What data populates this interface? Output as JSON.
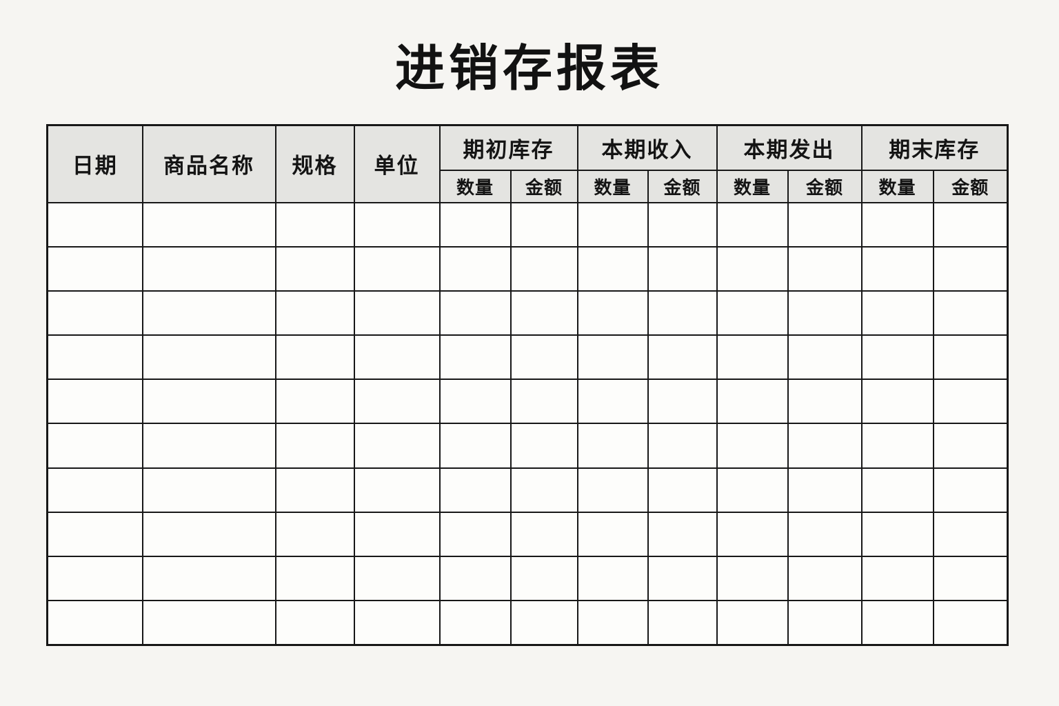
{
  "page": {
    "title": "进销存报表",
    "background_color": "#f6f5f2"
  },
  "table": {
    "columns": [
      {
        "label": "日期"
      },
      {
        "label": "商品名称"
      },
      {
        "label": "规格"
      },
      {
        "label": "单位"
      }
    ],
    "groups": [
      {
        "label": "期初库存",
        "children": [
          "数量",
          "金额"
        ]
      },
      {
        "label": "本期收入",
        "children": [
          "数量",
          "金额"
        ]
      },
      {
        "label": "本期发出",
        "children": [
          "数量",
          "金额"
        ]
      },
      {
        "label": "期末库存",
        "children": [
          "数量",
          "金额"
        ]
      }
    ],
    "rows": [
      [
        "",
        "",
        "",
        "",
        "",
        "",
        "",
        "",
        "",
        "",
        "",
        ""
      ],
      [
        "",
        "",
        "",
        "",
        "",
        "",
        "",
        "",
        "",
        "",
        "",
        ""
      ],
      [
        "",
        "",
        "",
        "",
        "",
        "",
        "",
        "",
        "",
        "",
        "",
        ""
      ],
      [
        "",
        "",
        "",
        "",
        "",
        "",
        "",
        "",
        "",
        "",
        "",
        ""
      ],
      [
        "",
        "",
        "",
        "",
        "",
        "",
        "",
        "",
        "",
        "",
        "",
        ""
      ],
      [
        "",
        "",
        "",
        "",
        "",
        "",
        "",
        "",
        "",
        "",
        "",
        ""
      ],
      [
        "",
        "",
        "",
        "",
        "",
        "",
        "",
        "",
        "",
        "",
        "",
        ""
      ],
      [
        "",
        "",
        "",
        "",
        "",
        "",
        "",
        "",
        "",
        "",
        "",
        ""
      ],
      [
        "",
        "",
        "",
        "",
        "",
        "",
        "",
        "",
        "",
        "",
        "",
        ""
      ],
      [
        "",
        "",
        "",
        "",
        "",
        "",
        "",
        "",
        "",
        "",
        "",
        ""
      ]
    ],
    "colors": {
      "header_bg": "#e4e4e1",
      "body_bg": "#fdfdfb",
      "border": "#171717",
      "text": "#141414"
    }
  }
}
